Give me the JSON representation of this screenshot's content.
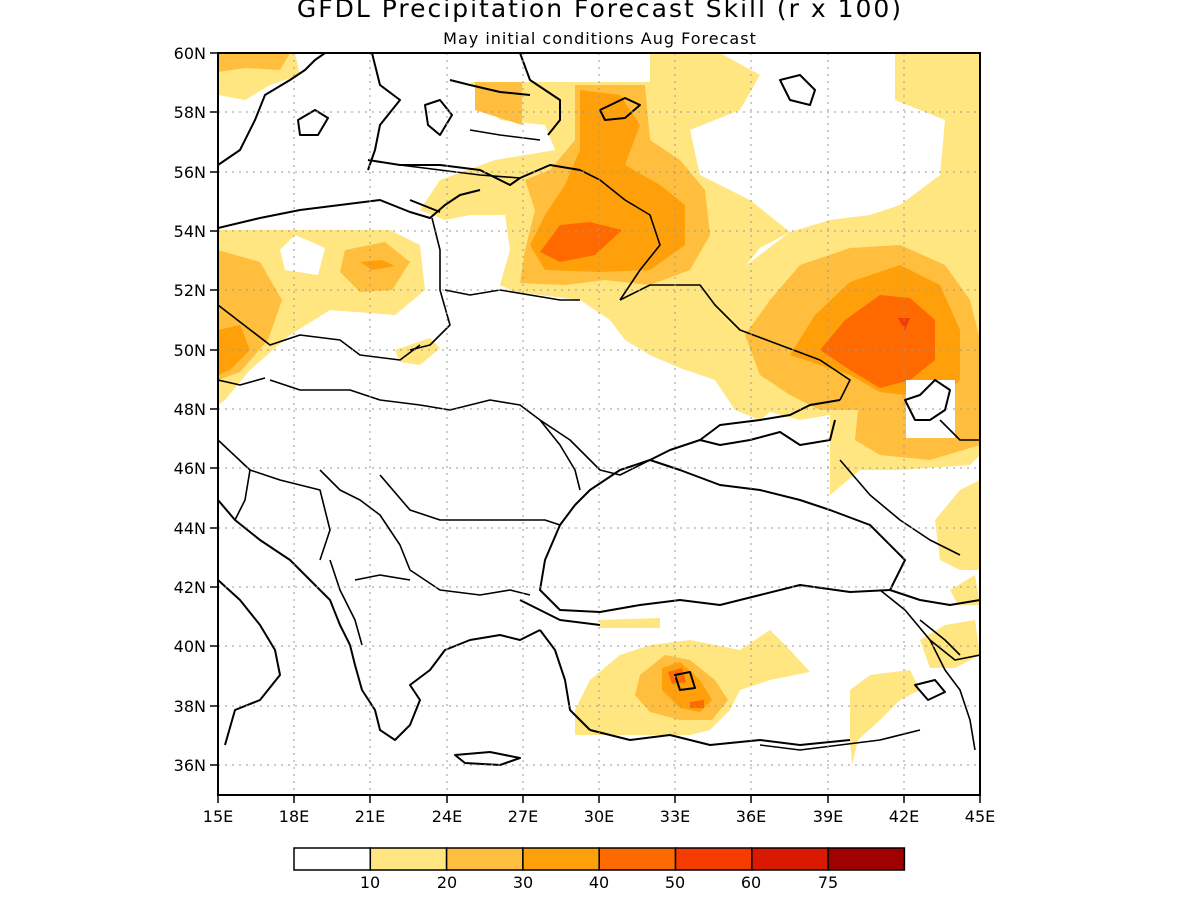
{
  "title": "GFDL Precipitation Forecast Skill (r x 100)",
  "subtitle": "May initial conditions  Aug Forecast",
  "map": {
    "lon_range": [
      15,
      45
    ],
    "lat_range": [
      35,
      60
    ],
    "lon_ticks": [
      "15E",
      "18E",
      "21E",
      "24E",
      "27E",
      "30E",
      "33E",
      "36E",
      "39E",
      "42E",
      "45E"
    ],
    "lat_ticks": [
      "60N",
      "58N",
      "56N",
      "54N",
      "52N",
      "50N",
      "48N",
      "46N",
      "44N",
      "42N",
      "40N",
      "38N",
      "36N"
    ],
    "grid": "dotted"
  },
  "colorbar": {
    "labels": [
      "10",
      "20",
      "30",
      "40",
      "50",
      "60",
      "75"
    ],
    "colors": [
      "#ffffff",
      "#ffe680",
      "#ffbe3d",
      "#ffa00a",
      "#ff6a00",
      "#f53c00",
      "#d91a00",
      "#a00000"
    ]
  }
}
